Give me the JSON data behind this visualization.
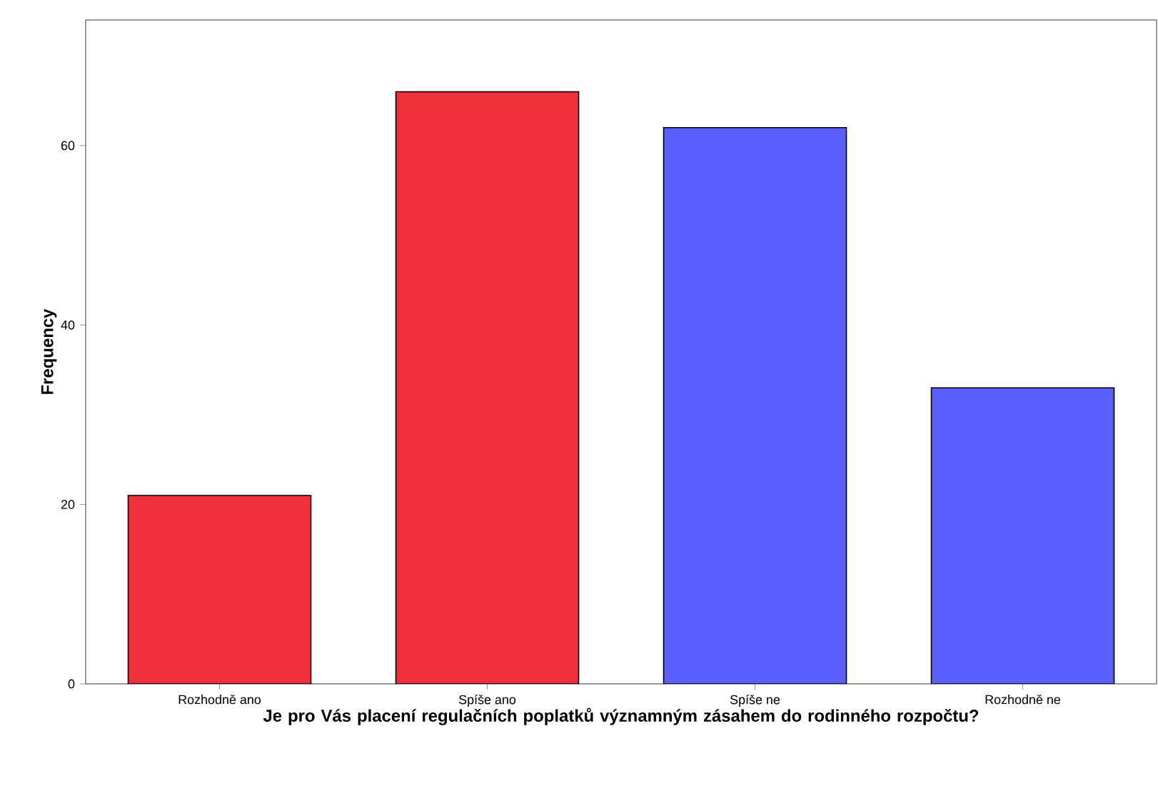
{
  "chart_data": {
    "type": "bar",
    "categories": [
      "Rozhodně ano",
      "Spíše ano",
      "Spíše ne",
      "Rozhodně ne"
    ],
    "values": [
      21,
      66,
      62,
      33
    ],
    "colors": [
      "#ee3039",
      "#ee3039",
      "#5b5fff",
      "#5b5fff"
    ],
    "xlabel": "Je pro Vás placení regulačních poplatků významným zásahem do rodinného rozpočtu?",
    "ylabel": "Frequency",
    "ylim": [
      0,
      74
    ],
    "yticks": [
      0,
      20,
      40,
      60
    ]
  }
}
